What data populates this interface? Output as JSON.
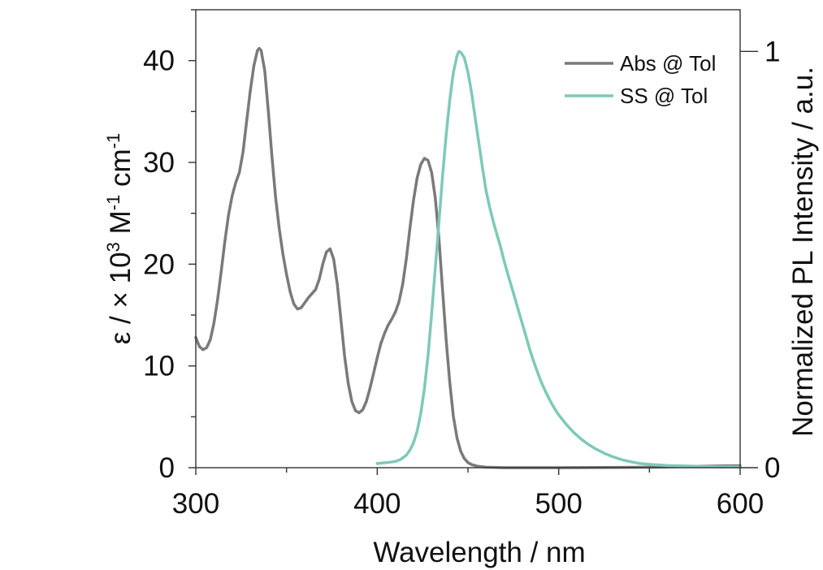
{
  "chart_data": {
    "type": "line",
    "title": "",
    "xlabel": "Wavelength / nm",
    "ylabel_left": {
      "prefix": "ε / × 10",
      "exp1": "3",
      "mid": " M",
      "exp2": "-1",
      "mid2": " cm",
      "exp3": "-1"
    },
    "ylabel_right": "Normalized PL Intensity / a.u.",
    "xlim": [
      300,
      600
    ],
    "ylim_left": [
      0,
      45
    ],
    "ylim_right": [
      0,
      1.1
    ],
    "x_ticks": [
      300,
      400,
      500,
      600
    ],
    "x_tick_labels": [
      "300",
      "400",
      "500",
      "600"
    ],
    "y_left_ticks": [
      0,
      10,
      20,
      30,
      40
    ],
    "y_left_tick_labels": [
      "0",
      "10",
      "20",
      "30",
      "40"
    ],
    "y_right_ticks": [
      0,
      1
    ],
    "y_right_tick_labels": [
      "0",
      "1"
    ],
    "legend_position": "top-right",
    "series": [
      {
        "name": "Abs @ Tol",
        "color": "#7a7a7a",
        "axis": "left",
        "points": [
          [
            300,
            12.8
          ],
          [
            302,
            11.9
          ],
          [
            304,
            11.6
          ],
          [
            306,
            11.8
          ],
          [
            308,
            12.6
          ],
          [
            310,
            14.2
          ],
          [
            312,
            16.5
          ],
          [
            314,
            19.3
          ],
          [
            316,
            22.2
          ],
          [
            318,
            24.8
          ],
          [
            320,
            26.7
          ],
          [
            322,
            28.0
          ],
          [
            324,
            29.0
          ],
          [
            326,
            31.0
          ],
          [
            328,
            34.0
          ],
          [
            330,
            37.0
          ],
          [
            332,
            39.5
          ],
          [
            334,
            41.0
          ],
          [
            335,
            41.2
          ],
          [
            336,
            41.0
          ],
          [
            338,
            39.0
          ],
          [
            340,
            35.0
          ],
          [
            342,
            30.5
          ],
          [
            344,
            26.5
          ],
          [
            346,
            23.5
          ],
          [
            348,
            21.0
          ],
          [
            350,
            19.0
          ],
          [
            352,
            17.3
          ],
          [
            354,
            16.1
          ],
          [
            356,
            15.6
          ],
          [
            358,
            15.7
          ],
          [
            360,
            16.2
          ],
          [
            362,
            16.7
          ],
          [
            364,
            17.1
          ],
          [
            366,
            17.5
          ],
          [
            368,
            18.5
          ],
          [
            370,
            20.0
          ],
          [
            372,
            21.2
          ],
          [
            374,
            21.5
          ],
          [
            376,
            20.5
          ],
          [
            378,
            18.0
          ],
          [
            380,
            14.5
          ],
          [
            382,
            11.0
          ],
          [
            384,
            8.3
          ],
          [
            386,
            6.5
          ],
          [
            388,
            5.6
          ],
          [
            390,
            5.4
          ],
          [
            392,
            5.7
          ],
          [
            394,
            6.5
          ],
          [
            396,
            7.8
          ],
          [
            398,
            9.3
          ],
          [
            400,
            10.8
          ],
          [
            402,
            12.2
          ],
          [
            404,
            13.2
          ],
          [
            406,
            14.0
          ],
          [
            408,
            14.6
          ],
          [
            410,
            15.3
          ],
          [
            412,
            16.3
          ],
          [
            414,
            18.0
          ],
          [
            416,
            20.5
          ],
          [
            418,
            23.5
          ],
          [
            420,
            26.3
          ],
          [
            422,
            28.5
          ],
          [
            424,
            29.8
          ],
          [
            426,
            30.4
          ],
          [
            428,
            30.2
          ],
          [
            430,
            29.0
          ],
          [
            432,
            26.5
          ],
          [
            434,
            22.5
          ],
          [
            436,
            17.5
          ],
          [
            438,
            12.5
          ],
          [
            440,
            8.3
          ],
          [
            442,
            5.0
          ],
          [
            444,
            2.9
          ],
          [
            446,
            1.6
          ],
          [
            448,
            0.9
          ],
          [
            450,
            0.5
          ],
          [
            452,
            0.3
          ],
          [
            455,
            0.15
          ],
          [
            460,
            0.05
          ],
          [
            470,
            0.0
          ],
          [
            500,
            0.0
          ],
          [
            550,
            0.05
          ],
          [
            580,
            0.15
          ],
          [
            600,
            0.2
          ]
        ]
      },
      {
        "name": "SS @ Tol",
        "color": "#7ec9b8",
        "axis": "right",
        "points": [
          [
            400,
            0.01
          ],
          [
            405,
            0.012
          ],
          [
            410,
            0.015
          ],
          [
            413,
            0.02
          ],
          [
            416,
            0.03
          ],
          [
            418,
            0.042
          ],
          [
            420,
            0.06
          ],
          [
            422,
            0.088
          ],
          [
            424,
            0.13
          ],
          [
            426,
            0.19
          ],
          [
            428,
            0.27
          ],
          [
            430,
            0.37
          ],
          [
            432,
            0.48
          ],
          [
            434,
            0.59
          ],
          [
            436,
            0.7
          ],
          [
            438,
            0.8
          ],
          [
            440,
            0.885
          ],
          [
            442,
            0.95
          ],
          [
            444,
            0.99
          ],
          [
            445,
            1.0
          ],
          [
            446,
            0.998
          ],
          [
            448,
            0.985
          ],
          [
            450,
            0.95
          ],
          [
            452,
            0.9
          ],
          [
            454,
            0.84
          ],
          [
            456,
            0.78
          ],
          [
            458,
            0.72
          ],
          [
            460,
            0.665
          ],
          [
            462,
            0.625
          ],
          [
            464,
            0.59
          ],
          [
            466,
            0.56
          ],
          [
            468,
            0.53
          ],
          [
            470,
            0.495
          ],
          [
            472,
            0.465
          ],
          [
            474,
            0.435
          ],
          [
            476,
            0.405
          ],
          [
            478,
            0.375
          ],
          [
            480,
            0.345
          ],
          [
            482,
            0.315
          ],
          [
            484,
            0.285
          ],
          [
            486,
            0.258
          ],
          [
            488,
            0.233
          ],
          [
            490,
            0.21
          ],
          [
            492,
            0.19
          ],
          [
            494,
            0.172
          ],
          [
            496,
            0.155
          ],
          [
            498,
            0.14
          ],
          [
            500,
            0.127
          ],
          [
            504,
            0.105
          ],
          [
            508,
            0.086
          ],
          [
            512,
            0.07
          ],
          [
            516,
            0.057
          ],
          [
            520,
            0.046
          ],
          [
            525,
            0.035
          ],
          [
            530,
            0.026
          ],
          [
            535,
            0.019
          ],
          [
            540,
            0.014
          ],
          [
            545,
            0.01
          ],
          [
            550,
            0.008
          ],
          [
            560,
            0.005
          ],
          [
            570,
            0.004
          ],
          [
            580,
            0.003
          ],
          [
            590,
            0.002
          ],
          [
            600,
            0.002
          ]
        ]
      }
    ]
  }
}
